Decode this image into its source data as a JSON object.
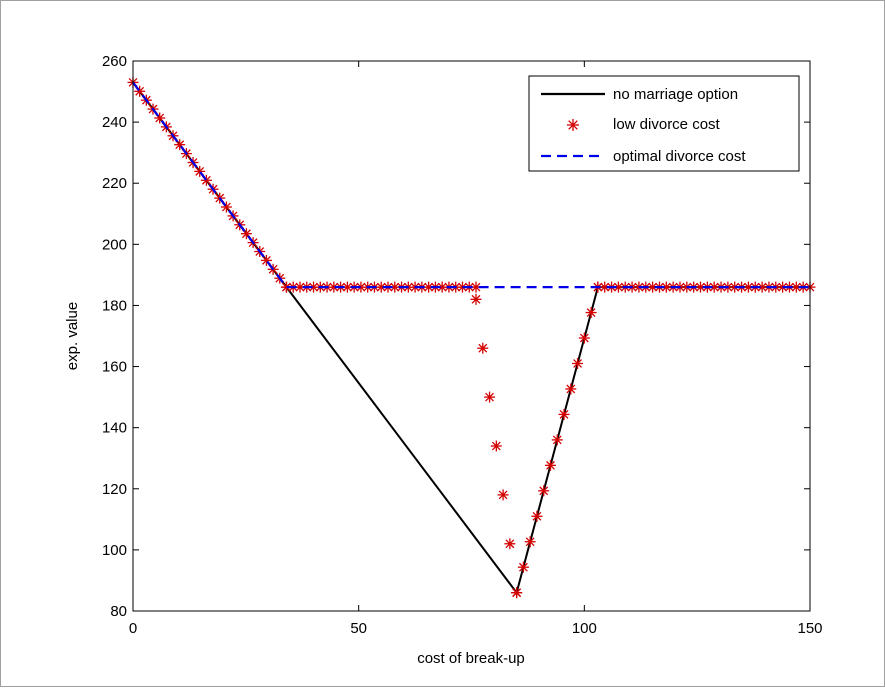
{
  "chart_data": {
    "type": "line",
    "xlabel": "cost of break-up",
    "ylabel": "exp. value",
    "xlim": [
      0,
      150
    ],
    "ylim": [
      80,
      260
    ],
    "xticks": [
      0,
      50,
      100,
      150
    ],
    "yticks": [
      80,
      100,
      120,
      140,
      160,
      180,
      200,
      220,
      240,
      260
    ],
    "grid": false,
    "legend_position": "top-right",
    "series": [
      {
        "name": "no marriage option",
        "style": "solid",
        "marker": "none",
        "color": "#000000",
        "x": [
          0,
          34,
          85,
          103,
          150
        ],
        "y": [
          253,
          186,
          86,
          186,
          186
        ]
      },
      {
        "name": "low divorce cost",
        "style": "none",
        "marker": "asterisk",
        "color": "#d40000",
        "segments": [
          {
            "x_from": 0,
            "x_to": 34,
            "y_from": 253,
            "y_to": 186
          },
          {
            "x_from": 34,
            "x_to": 76,
            "y_from": 186,
            "y_to": 186
          },
          {
            "x_from": 76,
            "x_to": 85,
            "y_from": 182,
            "y_to": 86
          },
          {
            "x_from": 85,
            "x_to": 103,
            "y_from": 86,
            "y_to": 186
          },
          {
            "x_from": 103,
            "x_to": 150,
            "y_from": 186,
            "y_to": 186
          }
        ],
        "step": 1.5
      },
      {
        "name": "optimal divorce cost",
        "style": "dashed",
        "marker": "none",
        "color": "#0000e6",
        "x": [
          0,
          34,
          150
        ],
        "y": [
          253,
          186,
          186
        ]
      }
    ]
  }
}
